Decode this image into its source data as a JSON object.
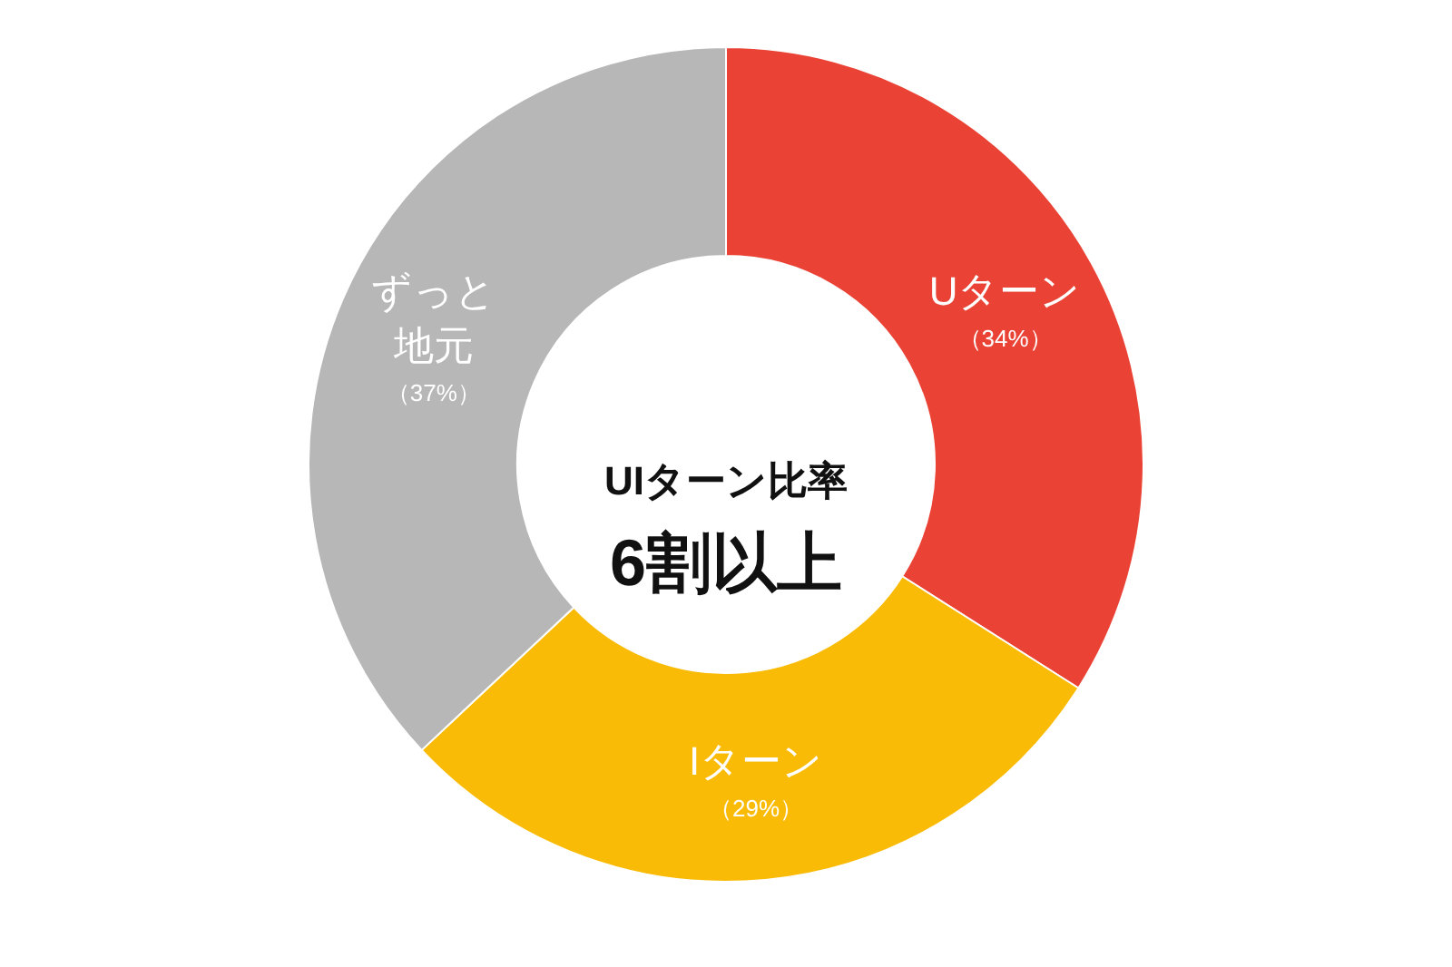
{
  "chart_data": {
    "type": "donut",
    "title": "UIターン比率",
    "subtitle": "6割以上",
    "categories": [
      "Uターン",
      "Iターン",
      "ずっと地元"
    ],
    "values": [
      34,
      29,
      37
    ],
    "colors": [
      "#ea4335",
      "#f9bb05",
      "#b7b7b7"
    ],
    "value_labels": [
      "（34%）",
      "（29%）",
      "（37%）"
    ]
  }
}
